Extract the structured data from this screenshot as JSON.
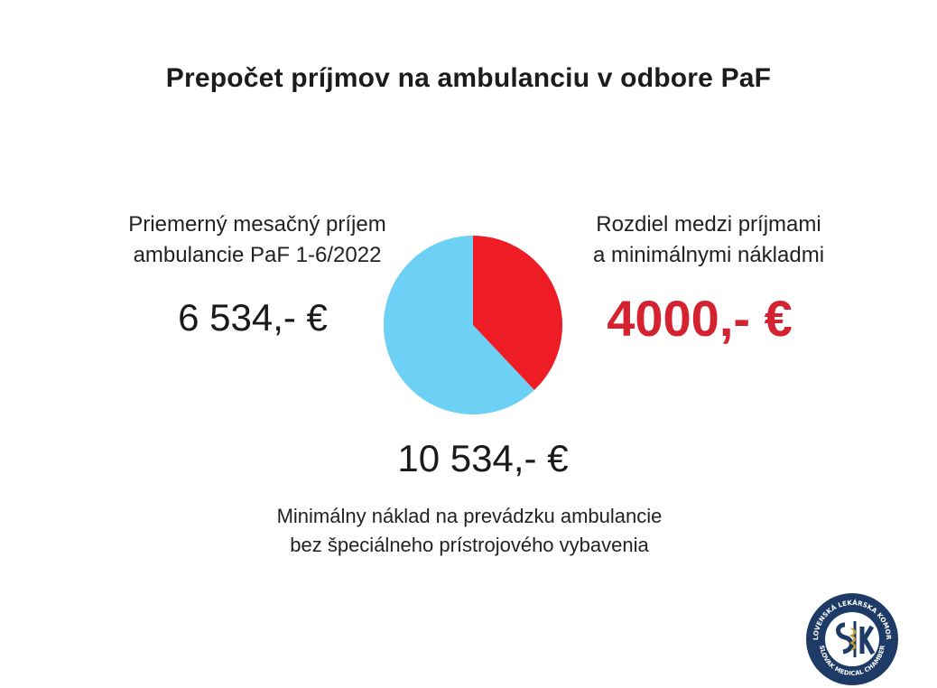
{
  "header": {
    "title": "Prepočet príjmov na ambulanciu v odbore PaF"
  },
  "left": {
    "label_line1": "Priemerný mesačný príjem",
    "label_line2": "ambulancie PaF 1-6/2022",
    "value": "6 534,- €"
  },
  "right": {
    "label_line1": "Rozdiel medzi príjmami",
    "label_line2": "a minimálnymi nákladmi",
    "value": "4000,- €"
  },
  "bottom": {
    "value": "10 534,- €",
    "label_line1": "Minimálny náklad na prevádzku ambulancie",
    "label_line2": "bez špeciálneho prístrojového vybavenia"
  },
  "chart_data": {
    "type": "pie",
    "title": "",
    "slices": [
      {
        "value": 6534,
        "color": "#6dd0f5"
      },
      {
        "value": 4000,
        "color": "#ee1c24"
      }
    ],
    "start_slice": 1,
    "start_angle_deg": 0,
    "direction": "clockwise"
  },
  "logo": {
    "ring_text_top": "SLOVENSKÁ LEKÁRSKA KOMORA",
    "ring_text_bottom": "SLOVAK MEDICAL CHAMBER",
    "color": "#1d3b66"
  }
}
